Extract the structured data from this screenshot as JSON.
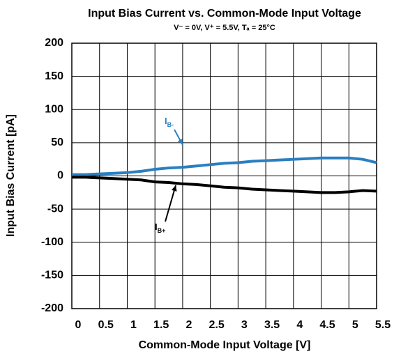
{
  "chart_data": {
    "type": "line",
    "title": "Input Bias Current vs. Common-Mode Input Voltage",
    "subtitle": "V⁻ = 0V, V⁺ = 5.5V, Tₐ = 25°C",
    "x_label": "Common-Mode Input Voltage [V]",
    "y_label": "Input Bias Current [pA]",
    "x": [
      0,
      0.25,
      0.5,
      0.75,
      1,
      1.25,
      1.5,
      1.75,
      2,
      2.25,
      2.5,
      2.75,
      3,
      3.25,
      3.5,
      3.75,
      4,
      4.25,
      4.5,
      4.75,
      5,
      5.25,
      5.5
    ],
    "series": [
      {
        "name": "IB-",
        "color": "#2a7fc0",
        "values": [
          2,
          2,
          3,
          4,
          5,
          7,
          10,
          12,
          13,
          15,
          17,
          19,
          20,
          22,
          23,
          24,
          25,
          26,
          27,
          27,
          27,
          25,
          20
        ]
      },
      {
        "name": "IB+",
        "color": "#000000",
        "values": [
          -2,
          -2,
          -3,
          -4,
          -5,
          -6,
          -9,
          -10,
          -12,
          -13,
          -15,
          -17,
          -18,
          -20,
          -21,
          -22,
          -23,
          -24,
          -25,
          -25,
          -24,
          -22,
          -23
        ]
      }
    ],
    "annotations": [
      {
        "text": "I",
        "sub": "B-"
      },
      {
        "text": "I",
        "sub": "B+"
      }
    ],
    "xlim": [
      0,
      5.5
    ],
    "xticks": [
      0,
      0.5,
      1,
      1.5,
      2,
      2.5,
      3,
      3.5,
      4,
      4.5,
      5,
      5.5
    ],
    "ylim": [
      -200,
      200
    ],
    "yticks": [
      -200,
      -150,
      -100,
      -50,
      0,
      50,
      100,
      150,
      200
    ],
    "grid": true
  }
}
